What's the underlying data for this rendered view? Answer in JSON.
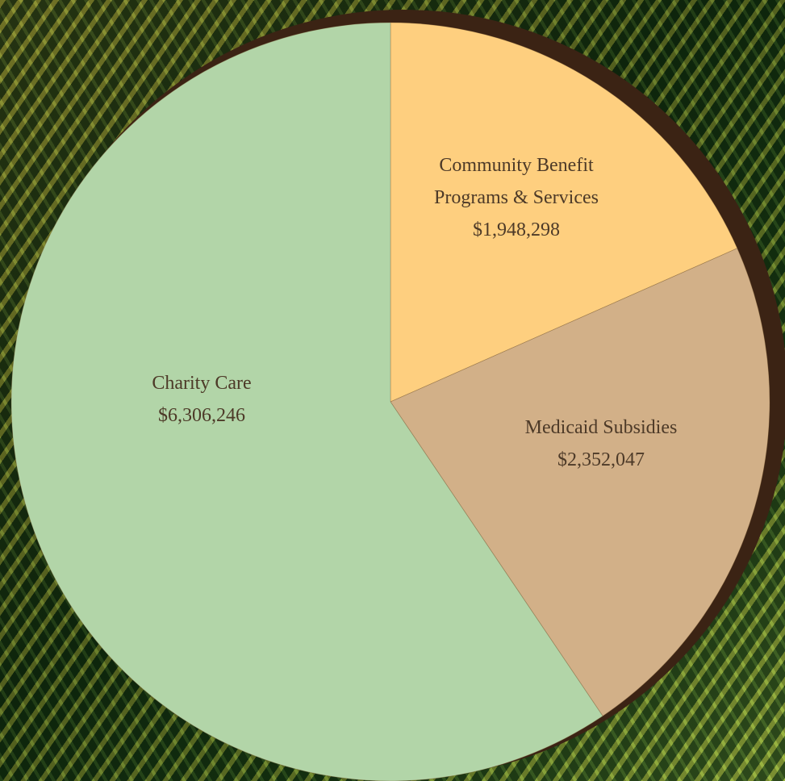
{
  "chart_data": {
    "type": "pie",
    "categories": [
      "Community Benefit Programs & Services",
      "Medicaid Subsidies",
      "Charity Care"
    ],
    "values": [
      1948298,
      2352047,
      6306246
    ],
    "value_labels": [
      "$1,948,298",
      "$2,352,047",
      "$6,306,246"
    ],
    "colors": [
      "#fecf7f",
      "#d2b088",
      "#b2d5a8"
    ]
  }
}
